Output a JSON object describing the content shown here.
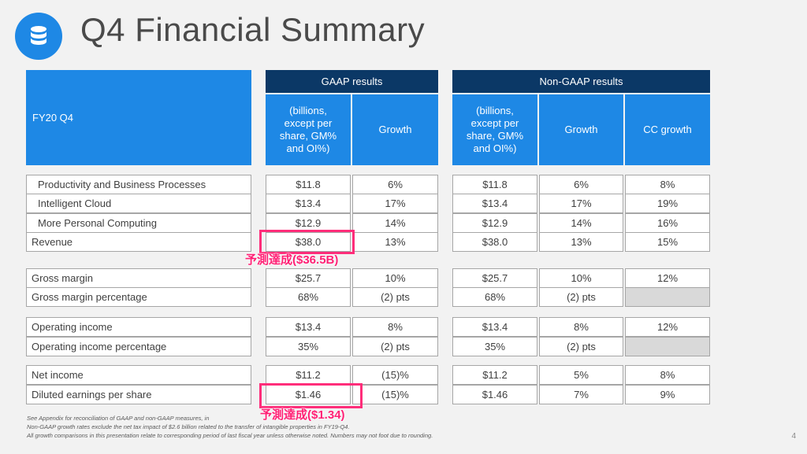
{
  "title": "Q4 Financial Summary",
  "logo_icon": "database-icon",
  "header": {
    "period": "FY20 Q4",
    "gaap_group": "GAAP results",
    "nongaap_group": "Non-GAAP results",
    "units": "(billions, except per share, GM% and OI%)",
    "growth": "Growth",
    "cc_growth": "CC growth"
  },
  "rows": [
    {
      "label": "Productivity and Business Processes",
      "gaap": "$11.8",
      "gaap_growth": "6%",
      "ng": "$11.8",
      "ng_growth": "6%",
      "cc": "8%"
    },
    {
      "label": "Intelligent Cloud",
      "gaap": "$13.4",
      "gaap_growth": "17%",
      "ng": "$13.4",
      "ng_growth": "17%",
      "cc": "19%"
    },
    {
      "label": "More Personal Computing",
      "gaap": "$12.9",
      "gaap_growth": "14%",
      "ng": "$12.9",
      "ng_growth": "14%",
      "cc": "16%"
    },
    {
      "label": "Revenue",
      "gaap": "$38.0",
      "gaap_growth": "13%",
      "ng": "$38.0",
      "ng_growth": "13%",
      "cc": "15%"
    },
    {
      "label": "Gross margin",
      "gaap": "$25.7",
      "gaap_growth": "10%",
      "ng": "$25.7",
      "ng_growth": "10%",
      "cc": "12%"
    },
    {
      "label": "Gross margin percentage",
      "gaap": "68%",
      "gaap_growth": "(2) pts",
      "ng": "68%",
      "ng_growth": "(2) pts",
      "cc": ""
    },
    {
      "label": "Operating income",
      "gaap": "$13.4",
      "gaap_growth": "8%",
      "ng": "$13.4",
      "ng_growth": "8%",
      "cc": "12%"
    },
    {
      "label": "Operating income percentage",
      "gaap": "35%",
      "gaap_growth": "(2) pts",
      "ng": "35%",
      "ng_growth": "(2) pts",
      "cc": ""
    },
    {
      "label": "Net income",
      "gaap": "$11.2",
      "gaap_growth": "(15)%",
      "ng": "$11.2",
      "ng_growth": "5%",
      "cc": "8%"
    },
    {
      "label": "Diluted earnings per share",
      "gaap": "$1.46",
      "gaap_growth": "(15)%",
      "ng": "$1.46",
      "ng_growth": "7%",
      "cc": "9%"
    }
  ],
  "annotations": {
    "revenue": "予測達成($36.5B)",
    "eps": "予測達成($1.34)"
  },
  "footnotes": [
    "See Appendix for reconciliation of GAAP and non-GAAP measures, in",
    "Non-GAAP growth rates exclude the net tax impact of $2.6 billion related to the transfer of intangible properties in FY19-Q4.",
    "All growth comparisons in this presentation relate to corresponding period of last fiscal year unless otherwise noted. Numbers may not foot due to rounding."
  ],
  "page_number": "4",
  "colors": {
    "header_dark": "#0b3866",
    "header_blue": "#1e88e5",
    "highlight": "#ff2d7a"
  }
}
